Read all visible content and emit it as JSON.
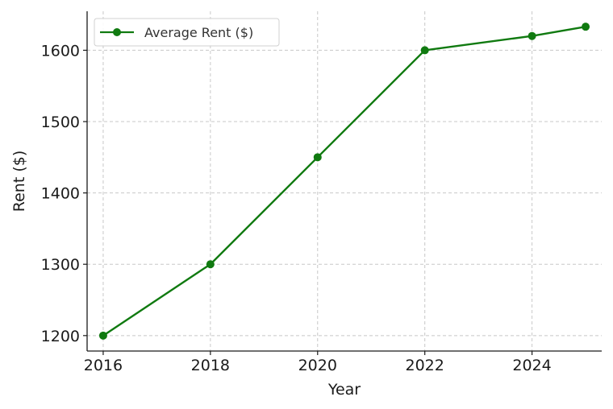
{
  "chart_data": {
    "type": "line",
    "title": "",
    "xlabel": "Year",
    "ylabel": "Rent ($)",
    "x": [
      2016,
      2018,
      2020,
      2022,
      2024,
      2025
    ],
    "series": [
      {
        "name": "Average Rent ($)",
        "values": [
          1200,
          1300,
          1450,
          1600,
          1620,
          1633
        ],
        "color": "#107a10"
      }
    ],
    "xticks": [
      2016,
      2018,
      2020,
      2022,
      2024
    ],
    "yticks": [
      1200,
      1300,
      1400,
      1500,
      1600
    ],
    "xlim": [
      2015.7,
      2025.3
    ],
    "ylim": [
      1178.35,
      1654.65
    ],
    "grid": true,
    "legend_position": "top-left",
    "marker": "circle"
  }
}
